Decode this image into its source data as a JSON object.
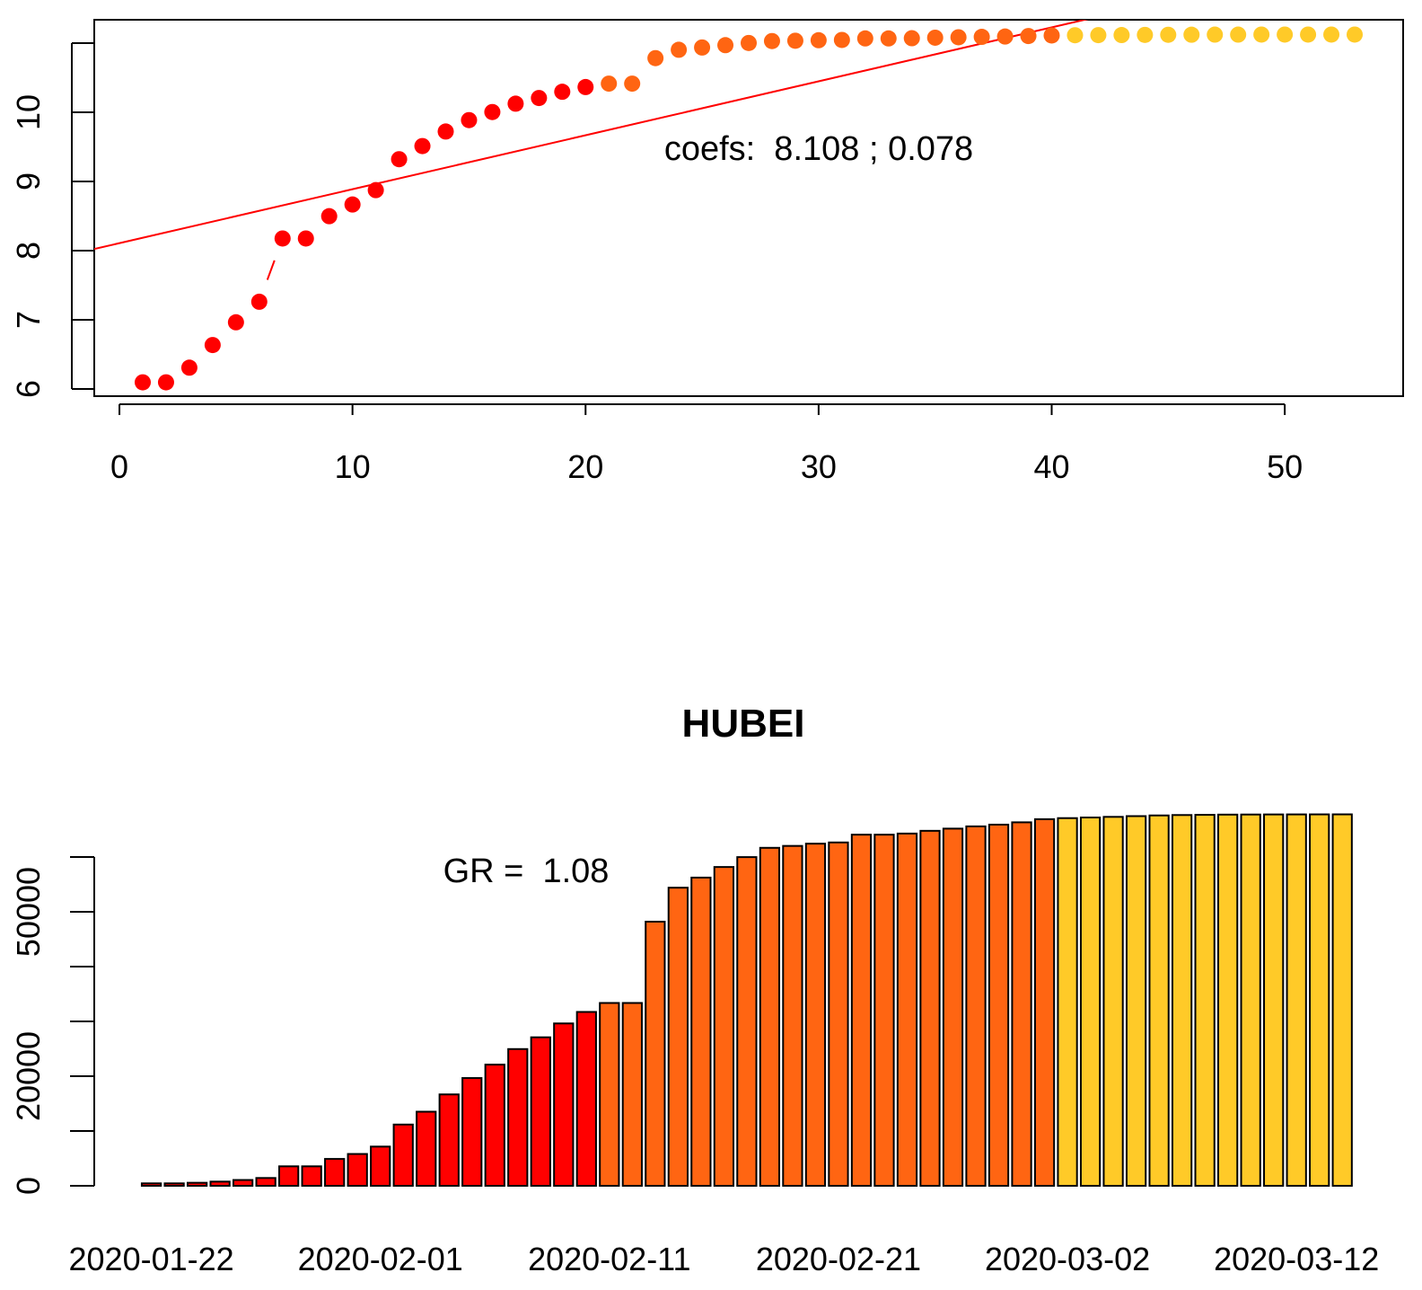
{
  "chart_data": [
    {
      "type": "scatter",
      "x": [
        1,
        2,
        3,
        4,
        5,
        6,
        7,
        8,
        9,
        10,
        11,
        12,
        13,
        14,
        15,
        16,
        17,
        18,
        19,
        20,
        21,
        22,
        23,
        24,
        25,
        26,
        27,
        28,
        29,
        30,
        31,
        32,
        33,
        34,
        35,
        36,
        37,
        38,
        39,
        40,
        41,
        42,
        43,
        44,
        45,
        46,
        47,
        48,
        49,
        50,
        51,
        52,
        53
      ],
      "series": [
        {
          "values": [
            6.096,
            6.096,
            6.308,
            6.635,
            6.964,
            7.261,
            8.176,
            8.176,
            8.498,
            8.667,
            8.875,
            9.322,
            9.512,
            9.722,
            9.887,
            10.004,
            10.125,
            10.207,
            10.297,
            10.365,
            10.415,
            10.415,
            10.783,
            10.904,
            10.937,
            10.971,
            11.002,
            11.03,
            11.035,
            11.042,
            11.046,
            11.068,
            11.068,
            11.071,
            11.079,
            11.085,
            11.091,
            11.096,
            11.103,
            11.111,
            11.114,
            11.116,
            11.117,
            11.119,
            11.121,
            11.122,
            11.123,
            11.123,
            11.124,
            11.124,
            11.124,
            11.124,
            11.124
          ],
          "colors": [
            "#ff0000",
            "#ff0000",
            "#ff0000",
            "#ff0000",
            "#ff0000",
            "#ff0000",
            "#ff0000",
            "#ff0000",
            "#ff0000",
            "#ff0000",
            "#ff0000",
            "#ff0000",
            "#ff0000",
            "#ff0000",
            "#ff0000",
            "#ff0000",
            "#ff0000",
            "#ff0000",
            "#ff0000",
            "#ff0000",
            "#ff6512",
            "#ff6512",
            "#ff6512",
            "#ff6512",
            "#ff6512",
            "#ff6512",
            "#ff6512",
            "#ff6512",
            "#ff6512",
            "#ff6512",
            "#ff6512",
            "#ff6512",
            "#ff6512",
            "#ff6512",
            "#ff6512",
            "#ff6512",
            "#ff6512",
            "#ff6512",
            "#ff6512",
            "#ff6512",
            "#ffca28",
            "#ffca28",
            "#ffca28",
            "#ffca28",
            "#ffca28",
            "#ffca28",
            "#ffca28",
            "#ffca28",
            "#ffca28",
            "#ffca28",
            "#ffca28",
            "#ffca28",
            "#ffca28"
          ]
        }
      ],
      "fit": {
        "intercept": 8.108,
        "slope": 0.078,
        "color": "#ff0000"
      },
      "annotation": "coefs:  8.108 ; 0.078",
      "xlim": [
        -1.08,
        55.08
      ],
      "xticks": [
        0,
        10,
        20,
        30,
        40,
        50
      ],
      "ylim": [
        5.896,
        11.338
      ],
      "yticks": [
        6,
        7,
        8,
        9,
        10,
        {
          "value": 11,
          "label": null
        }
      ]
    },
    {
      "type": "bar",
      "title": "HUBEI",
      "categories": [
        "2020-01-22",
        null,
        null,
        null,
        null,
        null,
        null,
        null,
        null,
        null,
        "2020-02-01",
        null,
        null,
        null,
        null,
        null,
        null,
        null,
        null,
        null,
        "2020-02-11",
        null,
        null,
        null,
        null,
        null,
        null,
        null,
        null,
        null,
        "2020-02-21",
        null,
        null,
        null,
        null,
        null,
        null,
        null,
        null,
        null,
        "2020-03-02",
        null,
        null,
        null,
        null,
        null,
        null,
        null,
        null,
        null,
        "2020-03-12",
        null,
        null
      ],
      "values": [
        444,
        444,
        549,
        761,
        1058,
        1423,
        3554,
        3554,
        4903,
        5806,
        7153,
        11177,
        13522,
        16678,
        19665,
        22112,
        24953,
        27100,
        29631,
        31728,
        33366,
        33366,
        48206,
        54406,
        56249,
        58182,
        59989,
        61682,
        62031,
        62442,
        62662,
        64084,
        64084,
        64287,
        64786,
        65187,
        65596,
        65914,
        66337,
        66907,
        67103,
        67217,
        67332,
        67466,
        67592,
        67666,
        67707,
        67743,
        67760,
        67773,
        67781,
        67786,
        67790
      ],
      "colors": [
        "#ff0000",
        "#ff0000",
        "#ff0000",
        "#ff0000",
        "#ff0000",
        "#ff0000",
        "#ff0000",
        "#ff0000",
        "#ff0000",
        "#ff0000",
        "#ff0000",
        "#ff0000",
        "#ff0000",
        "#ff0000",
        "#ff0000",
        "#ff0000",
        "#ff0000",
        "#ff0000",
        "#ff0000",
        "#ff0000",
        "#ff6512",
        "#ff6512",
        "#ff6512",
        "#ff6512",
        "#ff6512",
        "#ff6512",
        "#ff6512",
        "#ff6512",
        "#ff6512",
        "#ff6512",
        "#ff6512",
        "#ff6512",
        "#ff6512",
        "#ff6512",
        "#ff6512",
        "#ff6512",
        "#ff6512",
        "#ff6512",
        "#ff6512",
        "#ff6512",
        "#ffca28",
        "#ffca28",
        "#ffca28",
        "#ffca28",
        "#ffca28",
        "#ffca28",
        "#ffca28",
        "#ffca28",
        "#ffca28",
        "#ffca28",
        "#ffca28",
        "#ffca28",
        "#ffca28"
      ],
      "annotation": "GR =  1.08",
      "ylim": [
        0,
        70500
      ],
      "yticks": [
        0,
        {
          "value": 10000,
          "label": null
        },
        20000,
        {
          "value": 30000,
          "label": null
        },
        {
          "value": 40000,
          "label": null
        },
        50000,
        {
          "value": 60000,
          "label": null
        }
      ]
    }
  ]
}
